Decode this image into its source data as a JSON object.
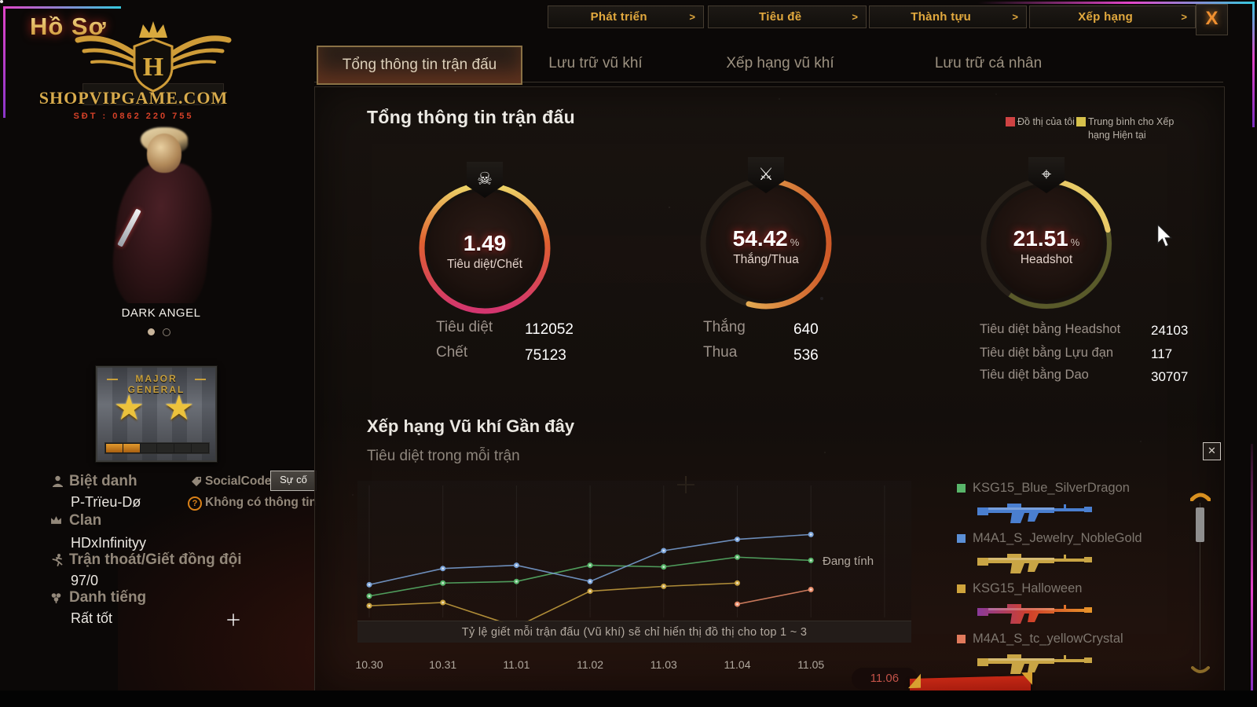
{
  "window": {
    "title": "Hồ Sơ",
    "close": "X"
  },
  "top_nav": {
    "chevron": ">",
    "items": [
      {
        "label": "Phát triển"
      },
      {
        "label": "Tiêu đề"
      },
      {
        "label": "Thành tựu"
      },
      {
        "label": "Xếp hạng"
      }
    ]
  },
  "branding": {
    "site": "SHOPVIPGAME.COM",
    "phone": "SĐT : 0862 220 755",
    "logo_letter": "H"
  },
  "character": {
    "name": "DARK ANGEL"
  },
  "rank": {
    "name_line1": "MAJOR",
    "name_line2": "GENERAL",
    "stars": "★ ★",
    "progress_segments": [
      1,
      1,
      0,
      0,
      0,
      0
    ]
  },
  "profile": {
    "nickname_label": "Biệt danh",
    "nickname": "P-Trïeu-Dø",
    "socialcode_label": "SocialCode",
    "socialcode_button": "Sự cố",
    "question_mark": "?",
    "socialcode_value": "Không có thông tin",
    "clan_label": "Clan",
    "clan": "HDxInfinityy",
    "leave_label": "Trận thoát/Giết đồng đội",
    "leave_value": "97/0",
    "reputation_label": "Danh tiếng",
    "reputation_value": "Rất tốt"
  },
  "tabs": [
    {
      "label": "Tổng thông tin trận đấu",
      "active": true
    },
    {
      "label": "Lưu trữ vũ khí",
      "active": false
    },
    {
      "label": "Xếp hạng vũ khí",
      "active": false
    },
    {
      "label": "Lưu trữ cá nhân",
      "active": false
    }
  ],
  "overview": {
    "title": "Tổng thông tin trận đấu",
    "legend": [
      {
        "label": "Đồ thị của tôi",
        "color": "#cf4343"
      },
      {
        "label": "Trung bình cho Xếp hạng Hiện tại",
        "color": "#d6c14b"
      }
    ],
    "gauges": [
      {
        "value": "1.49",
        "unit": "",
        "label": "Tiêu diệt/Chết",
        "percent": 100,
        "icon": "skull-icon",
        "glyph": "☠"
      },
      {
        "value": "54.42",
        "unit": "%",
        "label": "Thắng/Thua",
        "percent": 54.42,
        "icon": "crossed-rifles-icon",
        "glyph": "⚔"
      },
      {
        "value": "21.51",
        "unit": "%",
        "label": "Headshot",
        "percent": 21.51,
        "icon": "scope-icon",
        "glyph": "⌖"
      }
    ],
    "stats": {
      "col1": [
        {
          "label": "Tiêu diệt",
          "value": "112052"
        },
        {
          "label": "Chết",
          "value": "75123"
        }
      ],
      "col2": [
        {
          "label": "Thắng",
          "value": "640"
        },
        {
          "label": "Thua",
          "value": "536"
        }
      ],
      "col3": [
        {
          "label": "Tiêu diệt bằng Headshot",
          "value": "24103"
        },
        {
          "label": "Tiêu diệt bằng Lựu đạn",
          "value": "117"
        },
        {
          "label": "Tiêu diệt bằng Dao",
          "value": "30707"
        }
      ]
    }
  },
  "chart_section": {
    "title": "Xếp hạng Vũ khí Gần đây",
    "subtitle": "Tiêu diệt trong mỗi trận",
    "note": "Tỷ lệ giết mỗi trận đấu (Vũ khí) sẽ chỉ hiển thị đồ thị cho top 1 ~ 3",
    "calculating": "Đang tính"
  },
  "chart_data": {
    "type": "line",
    "x": [
      "10.30",
      "10.31",
      "11.01",
      "11.02",
      "11.03",
      "11.04",
      "11.05",
      "11.06"
    ],
    "highlight_x": "11.06",
    "ylim": [
      0,
      40
    ],
    "grid": "vertical-only",
    "legend_position": "right-list",
    "series": [
      {
        "name": "KSG15_Blue_SilverDragon",
        "color": "#58b56a",
        "values": [
          10,
          14,
          14.5,
          19.5,
          19,
          22,
          21,
          null
        ]
      },
      {
        "name": "M4A1_S_Jewelry_NobleGold",
        "color": "#7ba3d8",
        "values": [
          13.5,
          18.5,
          19.5,
          14.5,
          24,
          27.5,
          29,
          null
        ]
      },
      {
        "name": "KSG15_Halloween",
        "color": "#c9a23f",
        "values": [
          7,
          8,
          0.5,
          11.5,
          13,
          14,
          null,
          null
        ]
      },
      {
        "name": "M4A1_S_tc_yellowCrystal",
        "color": "#e58a68",
        "values": [
          null,
          null,
          null,
          null,
          null,
          7.5,
          12,
          null
        ]
      }
    ]
  },
  "weapon_list": {
    "items": [
      {
        "name": "KSG15_Blue_SilverDragon",
        "color": "#58b56a",
        "gun": "#4a7fd0"
      },
      {
        "name": "M4A1_S_Jewelry_NobleGold",
        "color": "#5b8fd6",
        "gun": "#c9a545"
      },
      {
        "name": "KSG15_Halloween",
        "color": "#cfa43c",
        "gun": "url(#halloGrad)"
      },
      {
        "name": "M4A1_S_tc_yellowCrystal",
        "color": "#e07a5c",
        "gun": "#c9a545"
      }
    ]
  }
}
